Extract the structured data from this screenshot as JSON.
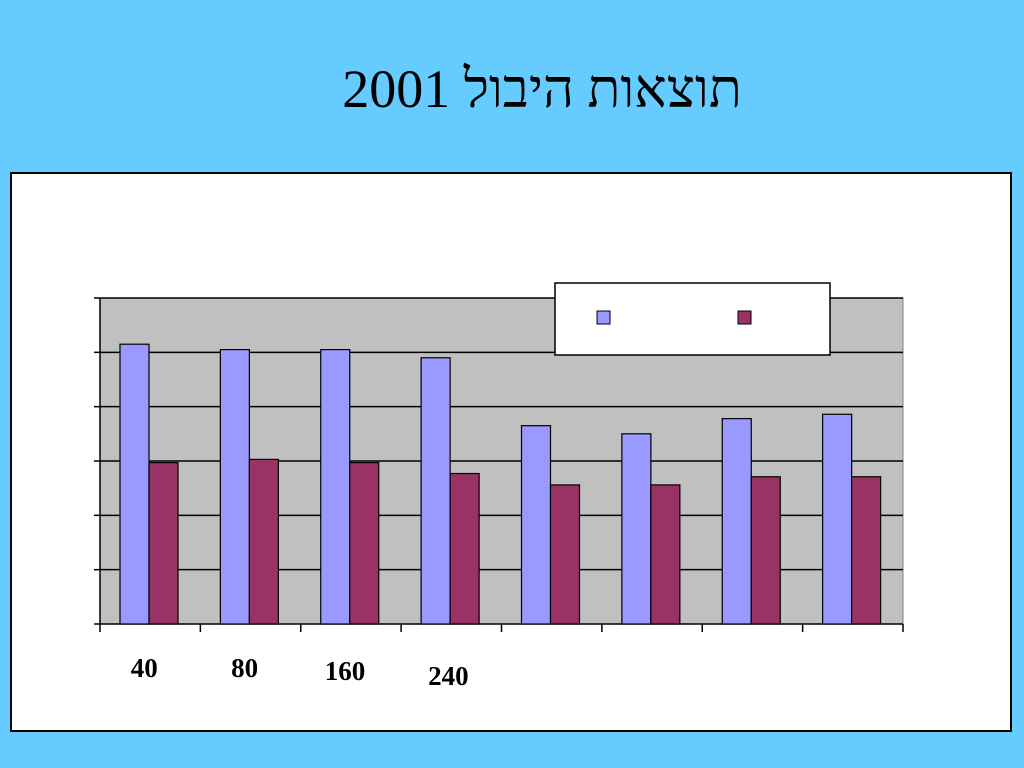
{
  "slide": {
    "title": "תוצאות היבול 2001"
  },
  "chart_data": {
    "type": "bar",
    "title": "",
    "xlabel": "",
    "ylabel": "",
    "ylim": [
      0,
      6
    ],
    "grid": true,
    "legend_position": "top-right",
    "categories": [
      "40",
      "80",
      "160",
      "240",
      "",
      "",
      "",
      ""
    ],
    "series": [
      {
        "color": "#9999ff",
        "values": [
          5.15,
          5.05,
          5.05,
          4.9,
          3.65,
          3.5,
          3.78,
          3.86
        ]
      },
      {
        "color": "#993366",
        "values": [
          2.97,
          3.03,
          2.97,
          2.77,
          2.56,
          2.56,
          2.71,
          2.71
        ]
      }
    ],
    "plot_background": "#c0c0c0"
  }
}
